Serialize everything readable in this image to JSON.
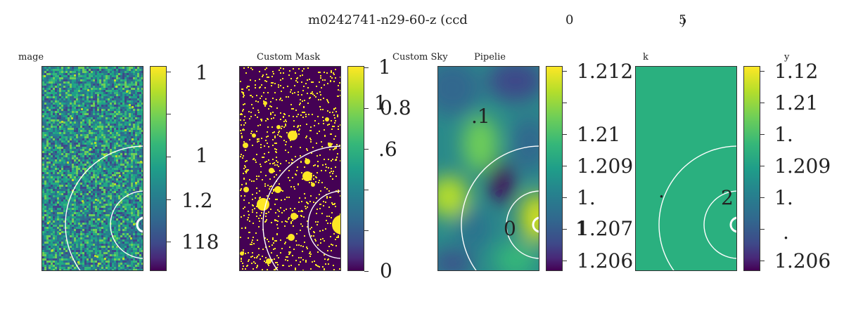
{
  "header": {
    "title_part": "m0242741-n29-60-z (ccd",
    "num_a": "0",
    "num_b": "5",
    "num_c": ")"
  },
  "panels": [
    {
      "title": "mage",
      "overlays": []
    },
    {
      "title": "Custom Mask",
      "overlays": [
        "1"
      ]
    },
    {
      "title": "Pipelie",
      "extra_title": "Custom Sky",
      "overlays": [
        ".1",
        "0",
        "1"
      ]
    },
    {
      "title": "k",
      "overlays": [
        ".",
        "2",
        "."
      ]
    }
  ],
  "colorbars": [
    {
      "labels": [
        "1",
        "1",
        "1.2",
        "118"
      ]
    },
    {
      "labels": [
        "1",
        "0.8",
        ".6",
        "0"
      ]
    },
    {
      "labels": [
        "1.212",
        "1.21",
        "1.209",
        "1.",
        "1.207",
        "1.206"
      ]
    },
    {
      "labels": [
        "1.12",
        "1.21",
        "1.",
        "1.209",
        "1.",
        "1.206"
      ],
      "extra_label": "y"
    }
  ],
  "colors": {
    "viridis_low": "#440154",
    "viridis_mid": "#21918c",
    "viridis_high": "#fde725",
    "flat_sky": "#2ab07f",
    "mask_bg": "#440154",
    "mask_fg": "#fde725",
    "annulus": "#ffffff"
  }
}
